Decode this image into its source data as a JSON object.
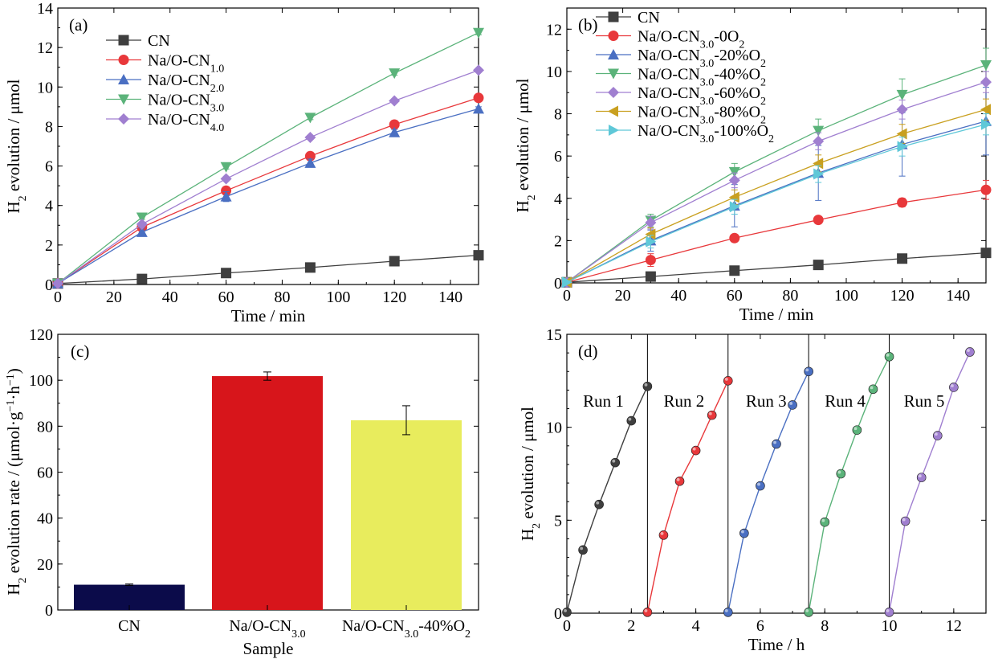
{
  "chart_data": [
    {
      "panel": "(a)",
      "type": "line",
      "xlabel": "Time / min",
      "ylabel": "H₂ evolution / μmol",
      "xlim": [
        0,
        150
      ],
      "ylim": [
        0,
        14
      ],
      "xticks": [
        0,
        20,
        40,
        60,
        80,
        100,
        120,
        140
      ],
      "yticks": [
        0,
        2,
        4,
        6,
        8,
        10,
        12,
        14
      ],
      "legend_position": "upper-left",
      "series": [
        {
          "name": "CN",
          "marker": "square",
          "color": "#3f3f3f",
          "x": [
            0,
            30,
            60,
            90,
            120,
            150
          ],
          "y": [
            0.05,
            0.28,
            0.58,
            0.86,
            1.18,
            1.48
          ],
          "err": [
            0,
            0.05,
            0.05,
            0.05,
            0.05,
            0.05
          ]
        },
        {
          "name": "Na/O-CN",
          "sub": "1.0",
          "marker": "circle",
          "color": "#e8383b",
          "x": [
            0,
            30,
            60,
            90,
            120,
            150
          ],
          "y": [
            0.05,
            2.9,
            4.75,
            6.5,
            8.1,
            9.45
          ],
          "err": [
            0,
            0.15,
            0.2,
            0.2,
            0.2,
            0.1
          ]
        },
        {
          "name": "Na/O-CN",
          "sub": "2.0",
          "marker": "triangle-up",
          "color": "#4a6fc2",
          "x": [
            0,
            30,
            60,
            90,
            120,
            150
          ],
          "y": [
            0.05,
            2.65,
            4.45,
            6.15,
            7.7,
            8.9
          ],
          "err": [
            0,
            0.2,
            0.25,
            0.2,
            0.15,
            0.1
          ]
        },
        {
          "name": "Na/O-CN",
          "sub": "3.0",
          "marker": "triangle-down",
          "color": "#5bb37a",
          "x": [
            0,
            30,
            60,
            90,
            120,
            150
          ],
          "y": [
            0.05,
            3.4,
            5.95,
            8.45,
            10.7,
            12.75
          ],
          "err": [
            0,
            0.1,
            0.1,
            0.1,
            0.1,
            0.1
          ]
        },
        {
          "name": "Na/O-CN",
          "sub": "4.0",
          "marker": "diamond",
          "color": "#a07fd0",
          "x": [
            0,
            30,
            60,
            90,
            120,
            150
          ],
          "y": [
            0.05,
            3.05,
            5.35,
            7.45,
            9.3,
            10.85
          ],
          "err": [
            0,
            0.1,
            0.1,
            0.1,
            0.1,
            0.1
          ]
        }
      ]
    },
    {
      "panel": "(b)",
      "type": "line",
      "xlabel": "Time / min",
      "ylabel": "H₂ evolution / μmol",
      "xlim": [
        0,
        150
      ],
      "ylim": [
        0,
        13
      ],
      "xticks": [
        0,
        20,
        40,
        60,
        80,
        100,
        120,
        140
      ],
      "yticks": [
        0,
        2,
        4,
        6,
        8,
        10,
        12
      ],
      "legend_position": "upper-left",
      "series": [
        {
          "name": "CN",
          "marker": "square",
          "color": "#3f3f3f",
          "x": [
            0,
            30,
            60,
            90,
            120,
            150
          ],
          "y": [
            0.03,
            0.3,
            0.58,
            0.85,
            1.15,
            1.42
          ],
          "err": [
            0,
            0.05,
            0.05,
            0.05,
            0.05,
            0.05
          ]
        },
        {
          "name": "Na/O-CN",
          "sub": "3.0",
          "suffix": "-0O₂",
          "marker": "circle",
          "color": "#e8383b",
          "x": [
            0,
            30,
            60,
            90,
            120,
            150
          ],
          "y": [
            0.03,
            1.08,
            2.12,
            2.98,
            3.8,
            4.4
          ],
          "err": [
            0,
            0.3,
            0.1,
            0.1,
            0.2,
            0.45
          ]
        },
        {
          "name": "Na/O-CN",
          "sub": "3.0",
          "suffix": "-20%O₂",
          "marker": "triangle-up",
          "color": "#4a6fc2",
          "x": [
            0,
            30,
            60,
            90,
            120,
            150
          ],
          "y": [
            0.03,
            2.0,
            3.65,
            5.2,
            6.55,
            7.65
          ],
          "err": [
            0,
            0.5,
            1.0,
            1.3,
            1.5,
            1.6
          ]
        },
        {
          "name": "Na/O-CN",
          "sub": "3.0",
          "suffix": "-40%O₂",
          "marker": "triangle-down",
          "color": "#5bb37a",
          "x": [
            0,
            30,
            60,
            90,
            120,
            150
          ],
          "y": [
            0.03,
            2.95,
            5.25,
            7.2,
            8.9,
            10.3
          ],
          "err": [
            0,
            0.3,
            0.4,
            0.55,
            0.75,
            0.8
          ]
        },
        {
          "name": "Na/O-CN",
          "sub": "3.0",
          "suffix": "-60%O₂",
          "marker": "diamond",
          "color": "#a07fd0",
          "x": [
            0,
            30,
            60,
            90,
            120,
            150
          ],
          "y": [
            0.03,
            2.85,
            4.85,
            6.7,
            8.2,
            9.5
          ],
          "err": [
            0,
            0.3,
            0.35,
            0.4,
            0.45,
            0.5
          ]
        },
        {
          "name": "Na/O-CN",
          "sub": "3.0",
          "suffix": "-80%O₂",
          "marker": "triangle-left",
          "color": "#c9a020",
          "x": [
            0,
            30,
            60,
            90,
            120,
            150
          ],
          "y": [
            0.03,
            2.3,
            4.05,
            5.65,
            7.05,
            8.2
          ],
          "err": [
            0,
            0.3,
            0.35,
            0.4,
            0.45,
            0.5
          ]
        },
        {
          "name": "Na/O-CN",
          "sub": "3.0",
          "suffix": "-100%O₂",
          "marker": "triangle-right",
          "color": "#5fc8d8",
          "x": [
            0,
            30,
            60,
            90,
            120,
            150
          ],
          "y": [
            0.03,
            1.95,
            3.6,
            5.15,
            6.45,
            7.5
          ],
          "err": [
            0,
            0.3,
            0.35,
            0.4,
            0.45,
            0.5
          ]
        }
      ]
    },
    {
      "panel": "(c)",
      "type": "bar",
      "xlabel": "Sample",
      "ylabel": "H₂ evolution rate / (μmol·g⁻¹·h⁻¹)",
      "ylim": [
        0,
        120
      ],
      "yticks": [
        0,
        20,
        40,
        60,
        80,
        100,
        120
      ],
      "categories": [
        {
          "name": "CN"
        },
        {
          "name": "Na/O-CN",
          "sub": "3.0"
        },
        {
          "name": "Na/O-CN",
          "sub": "3.0",
          "suffix": "-40%O₂"
        }
      ],
      "values": [
        11,
        101.8,
        82.6
      ],
      "err": [
        0.3,
        1.8,
        6.3
      ],
      "colors": [
        "#0b0b4a",
        "#d7151b",
        "#e8ec5d"
      ]
    },
    {
      "panel": "(d)",
      "type": "line",
      "xlabel": "Time / h",
      "ylabel": "H₂ evolution / μmol",
      "xlim": [
        0,
        13
      ],
      "ylim": [
        0,
        15
      ],
      "xticks": [
        0,
        2,
        4,
        6,
        8,
        10,
        12
      ],
      "yticks": [
        0,
        5,
        10,
        15
      ],
      "separators": [
        2.5,
        5,
        7.5,
        10
      ],
      "runs": [
        {
          "label": "Run 1",
          "color": "#3f3f3f",
          "x": [
            0,
            0.5,
            1.0,
            1.5,
            2.0,
            2.5
          ],
          "y": [
            0.05,
            3.4,
            5.85,
            8.1,
            10.35,
            12.2
          ]
        },
        {
          "label": "Run 2",
          "color": "#e8383b",
          "x": [
            2.5,
            3.0,
            3.5,
            4.0,
            4.5,
            5.0
          ],
          "y": [
            0.05,
            4.2,
            7.1,
            8.75,
            10.65,
            12.5
          ]
        },
        {
          "label": "Run 3",
          "color": "#4a6fc2",
          "x": [
            5.0,
            5.5,
            6.0,
            6.5,
            7.0,
            7.5
          ],
          "y": [
            0.05,
            4.3,
            6.85,
            9.1,
            11.2,
            13.0
          ]
        },
        {
          "label": "Run 4",
          "color": "#5bb37a",
          "x": [
            7.5,
            8.0,
            8.5,
            9.0,
            9.5,
            10.0
          ],
          "y": [
            0.05,
            4.9,
            7.5,
            9.85,
            12.05,
            13.8
          ]
        },
        {
          "label": "Run 5",
          "color": "#a07fd0",
          "x": [
            10.0,
            10.5,
            11.0,
            11.5,
            12.0,
            12.5
          ],
          "y": [
            0.05,
            4.95,
            7.3,
            9.55,
            12.15,
            14.05
          ]
        }
      ]
    }
  ]
}
